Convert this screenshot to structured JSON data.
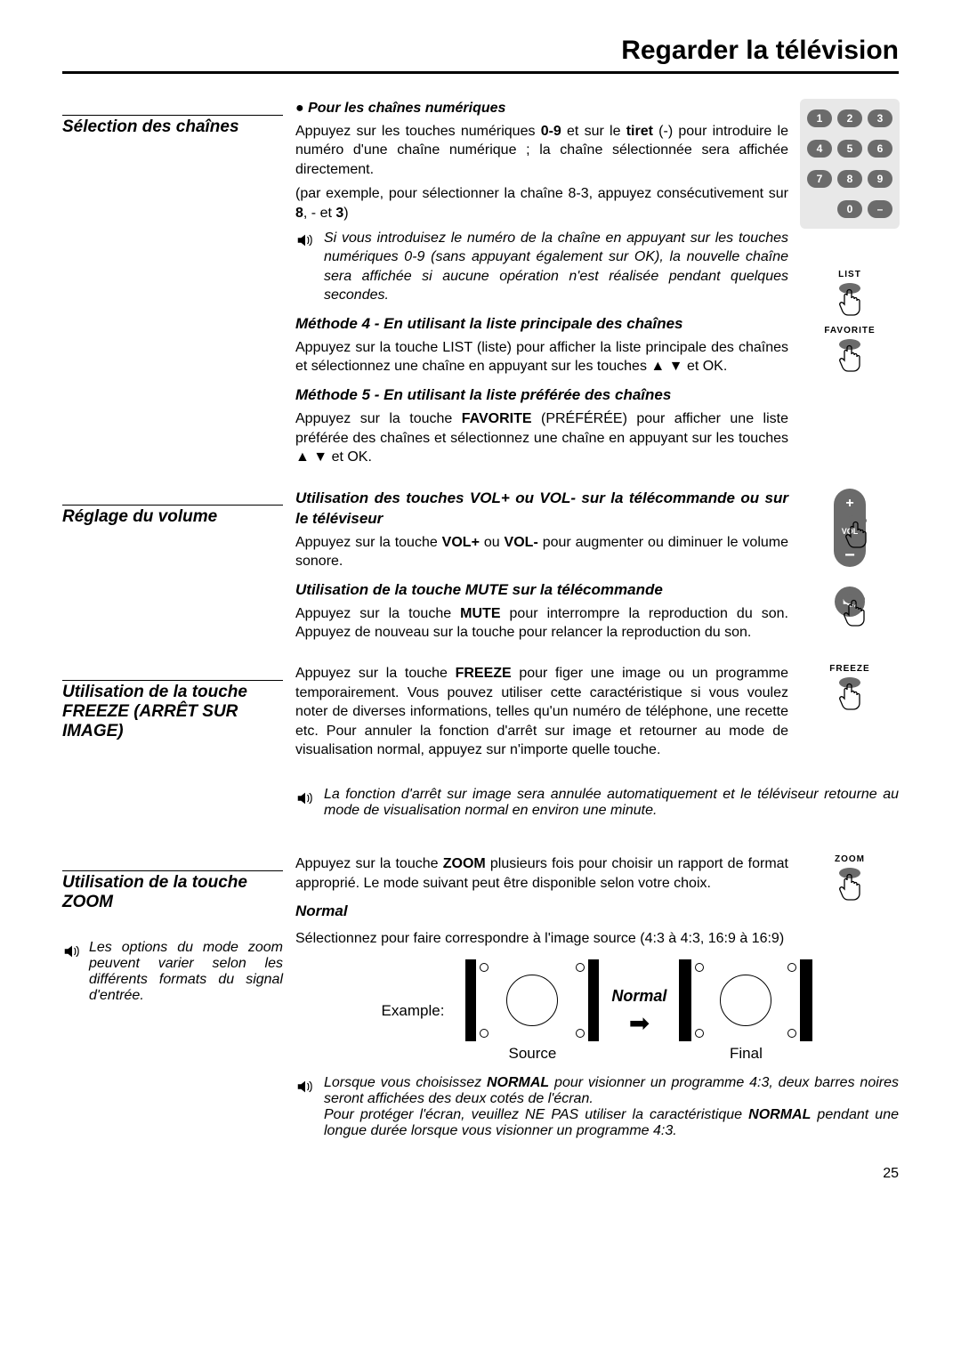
{
  "page_title": "Regarder la télévision",
  "section_channel": {
    "title": "Sélection des chaînes",
    "bullet": "Pour les chaînes numériques",
    "p1_a": "Appuyez sur les touches numériques ",
    "p1_b": "0-9",
    "p1_c": " et sur le ",
    "p1_d": "tiret",
    "p1_e": " (-) pour introduire le numéro d'une chaîne numérique ; la chaîne sélectionnée sera affichée directement.",
    "p2_a": "(par exemple, pour sélectionner la chaîne 8-3, appuyez consécutivement sur ",
    "p2_b": "8",
    "p2_c": ", - et ",
    "p2_d": "3",
    "p2_e": ")",
    "note1": "Si vous introduisez le numéro de la chaîne en appuyant sur les touches numériques 0-9 (sans appuyant également sur OK), la nouvelle chaîne sera affichée si aucune opération n'est réalisée pendant quelques secondes.",
    "m4_title": "Méthode 4 - En utilisant la liste principale des chaînes",
    "m4_body": "Appuyez sur la touche LIST (liste) pour afficher la liste principale des chaînes et sélectionnez une chaîne en appuyant sur les touches ▲ ▼ et OK.",
    "m5_title": "Méthode 5 - En utilisant la liste préférée des chaînes",
    "m5_body_a": "Appuyez sur la touche ",
    "m5_body_b": "FAVORITE",
    "m5_body_c": " (PRÉFÉRÉE) pour afficher une liste préférée des chaînes et sélectionnez une chaîne en appuyant sur les touches ▲ ▼ et OK."
  },
  "section_volume": {
    "title": "Réglage du volume",
    "h1": "Utilisation des touches VOL+ ou VOL- sur la télécommande ou sur le téléviseur",
    "p1_a": "Appuyez sur la touche ",
    "p1_b": "VOL+",
    "p1_c": " ou ",
    "p1_d": "VOL-",
    "p1_e": " pour augmenter ou diminuer le volume sonore.",
    "h2": "Utilisation de la touche MUTE sur la télécommande",
    "p2_a": "Appuyez sur la touche ",
    "p2_b": "MUTE",
    "p2_c": " pour interrompre la reproduction du son. Appuyez de nouveau sur la touche pour relancer la reproduction du son."
  },
  "section_freeze": {
    "title": "Utilisation de la touche FREEZE (ARRÊT SUR IMAGE)",
    "p_a": "Appuyez sur la touche ",
    "p_b": "FREEZE",
    "p_c": " pour figer une image ou un programme temporairement. Vous pouvez utiliser cette caractéristique si vous voulez noter de diverses informations, telles qu'un numéro de téléphone, une recette etc. Pour annuler la fonction d'arrêt sur image et retourner au mode de visualisation normal, appuyez sur n'importe quelle touche.",
    "note": "La fonction d'arrêt sur image sera annulée automatiquement et le téléviseur retourne au mode de visualisation normal en environ une minute."
  },
  "section_zoom": {
    "title": "Utilisation de la touche ZOOM",
    "p_a": "Appuyez sur la touche ",
    "p_b": "ZOOM",
    "p_c": " plusieurs fois pour choisir un rapport de format approprié. Le mode suivant peut être disponible selon votre choix.",
    "normal_h": "Normal",
    "normal_p": "Sélectionnez pour faire correspondre à l'image source (4:3 à 4:3, 16:9 à 16:9)",
    "left_note": "Les options du mode zoom peuvent varier selon les différents formats du signal d'entrée.",
    "example": "Example:",
    "arrow_lbl": "Normal",
    "source_lbl": "Source",
    "final_lbl": "Final",
    "note2_a": "Lorsque vous choisissez ",
    "note2_b": "NORMAL",
    "note2_c": " pour visionner un programme 4:3, deux barres noires seront affichées des deux cotés de l'écran.",
    "note2_d": "Pour protéger l'écran, veuillez NE PAS utiliser la caractéristique ",
    "note2_e": "NORMAL",
    "note2_f": " pendant une longue durée lorsque vous visionner un programme 4:3."
  },
  "buttons": {
    "list": "LIST",
    "favorite": "FAVORITE",
    "vol": "VOL",
    "mute": "MUTE",
    "freeze": "FREEZE",
    "zoom": "ZOOM"
  },
  "keypad_keys": [
    "1",
    "2",
    "3",
    "4",
    "5",
    "6",
    "7",
    "8",
    "9",
    "",
    "0",
    "–"
  ],
  "page_number": "25",
  "colors": {
    "key_bg": "#6b6b6b",
    "keypad_bg": "#e8e8e8"
  }
}
